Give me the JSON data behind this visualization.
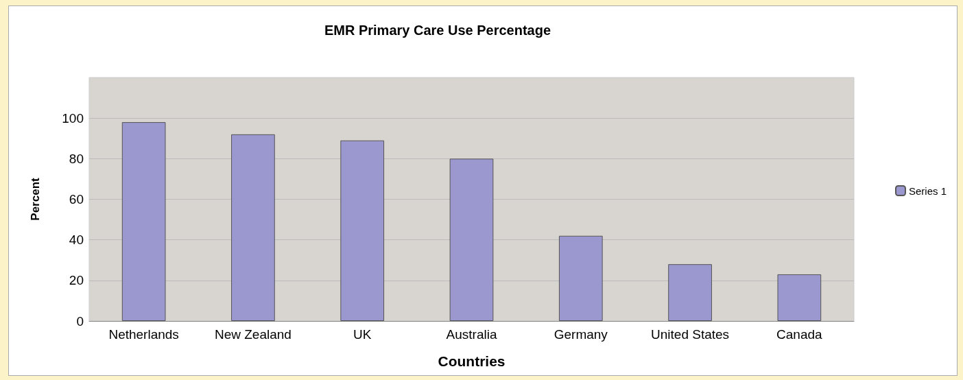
{
  "chart_data": {
    "type": "bar",
    "title": "EMR Primary Care Use Percentage",
    "xlabel": "Countries",
    "ylabel": "Percent",
    "categories": [
      "Netherlands",
      "New Zealand",
      "UK",
      "Australia",
      "Germany",
      "United States",
      "Canada"
    ],
    "series": [
      {
        "name": "Series 1",
        "color": "#9b98d0",
        "values": [
          98,
          92,
          89,
          80,
          42,
          28,
          23
        ]
      }
    ],
    "ylim": [
      0,
      120
    ],
    "yticks": [
      0,
      20,
      40,
      60,
      80,
      100
    ],
    "grid": "y",
    "legend": "right"
  }
}
